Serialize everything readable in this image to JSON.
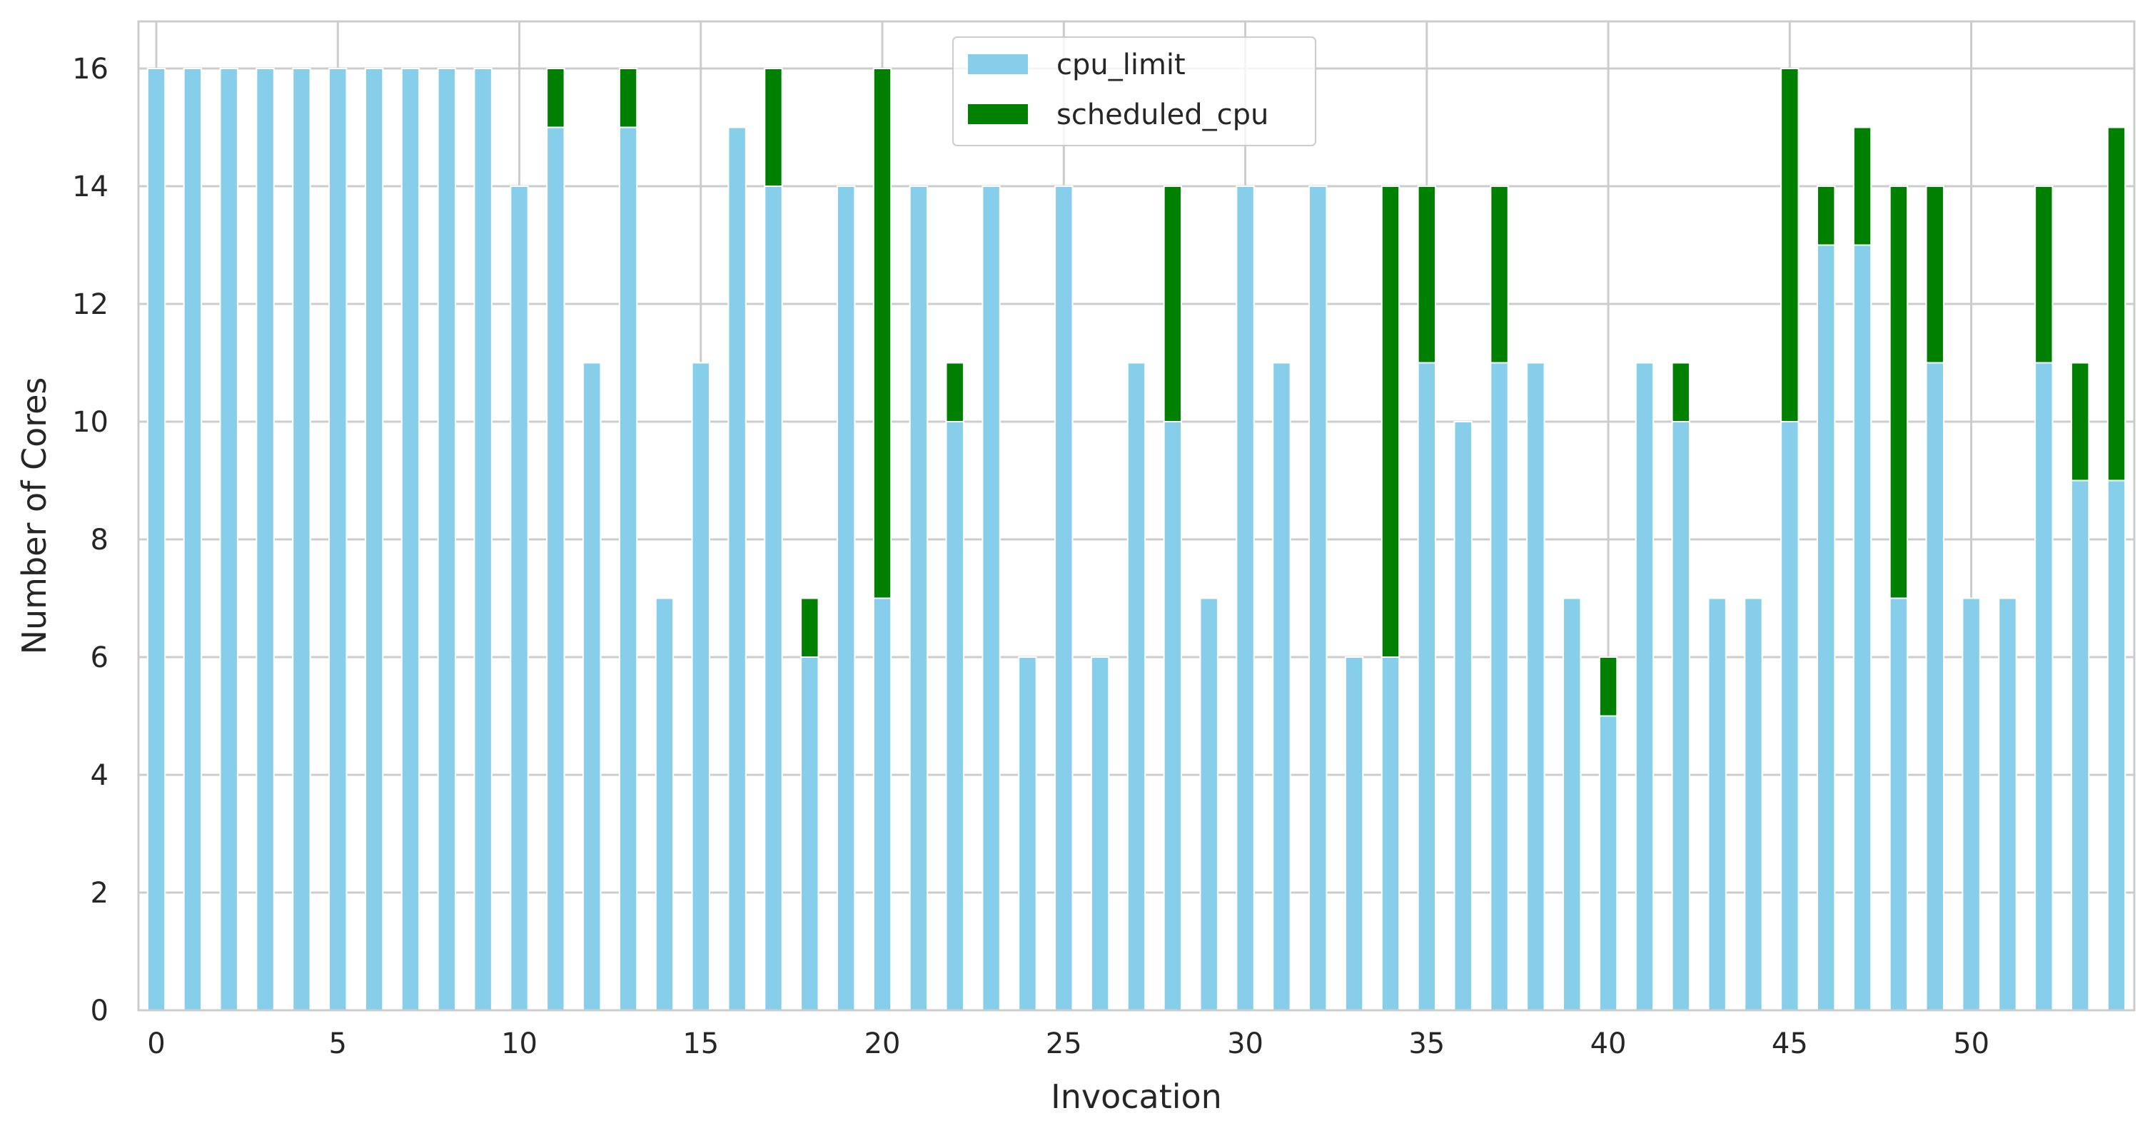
{
  "chart_data": {
    "type": "bar",
    "stacked": true,
    "x": [
      0,
      1,
      2,
      3,
      4,
      5,
      6,
      7,
      8,
      9,
      10,
      11,
      12,
      13,
      14,
      15,
      16,
      17,
      18,
      19,
      20,
      21,
      22,
      23,
      24,
      25,
      26,
      27,
      28,
      29,
      30,
      31,
      32,
      33,
      34,
      35,
      36,
      37,
      38,
      39,
      40,
      41,
      42,
      43,
      44,
      45,
      46,
      47,
      48,
      49,
      50,
      51,
      52,
      53,
      54
    ],
    "x_ticks": [
      0,
      5,
      10,
      15,
      20,
      25,
      30,
      35,
      40,
      45,
      50
    ],
    "y_ticks": [
      0,
      2,
      4,
      6,
      8,
      10,
      12,
      14,
      16
    ],
    "xlabel": "Invocation",
    "ylabel": "Number of Cores",
    "ylim": [
      0,
      16.8
    ],
    "grid": true,
    "legend_position": "top-center",
    "series": [
      {
        "name": "cpu_limit",
        "color": "#87ceeb",
        "values": [
          16,
          16,
          16,
          16,
          16,
          16,
          16,
          16,
          16,
          16,
          14,
          15,
          11,
          15,
          7,
          11,
          15,
          14,
          6,
          14,
          7,
          14,
          10,
          14,
          6,
          14,
          6,
          11,
          10,
          7,
          14,
          11,
          14,
          6,
          6,
          11,
          10,
          11,
          11,
          7,
          5,
          11,
          10,
          7,
          7,
          10,
          13,
          13,
          7,
          11,
          7,
          7,
          11,
          9,
          9
        ]
      },
      {
        "name": "scheduled_cpu",
        "color": "#008000",
        "values": [
          0,
          0,
          0,
          0,
          0,
          0,
          0,
          0,
          0,
          0,
          0,
          1,
          0,
          1,
          0,
          0,
          0,
          2,
          1,
          0,
          9,
          0,
          1,
          0,
          0,
          0,
          0,
          0,
          4,
          0,
          0,
          0,
          0,
          0,
          8,
          3,
          0,
          3,
          0,
          0,
          1,
          0,
          1,
          0,
          0,
          6,
          1,
          2,
          7,
          3,
          0,
          0,
          3,
          2,
          6
        ]
      }
    ]
  }
}
